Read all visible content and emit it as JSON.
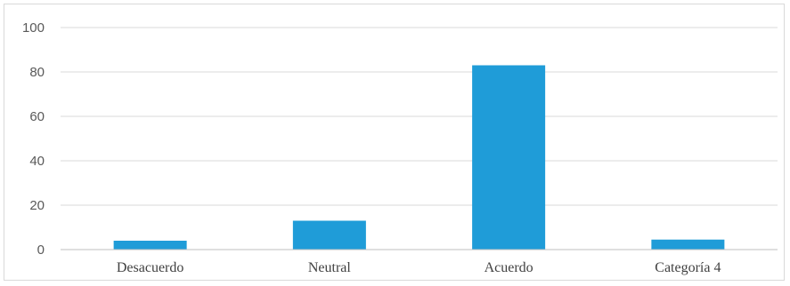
{
  "chart_data": {
    "type": "bar",
    "categories": [
      "Desacuerdo",
      "Neutral",
      "Acuerdo",
      "Categoría 4"
    ],
    "values": [
      4,
      13,
      83,
      4.5
    ],
    "title": "",
    "xlabel": "",
    "ylabel": "",
    "ylim": [
      0,
      100
    ],
    "yticks": [
      "0",
      "20",
      "40",
      "60",
      "80",
      "100"
    ],
    "grid": true,
    "legend": "none",
    "colors": {
      "bar": "#1f9cd8",
      "grid": "#d9d9d9",
      "axis": "#bfbfbf"
    }
  }
}
